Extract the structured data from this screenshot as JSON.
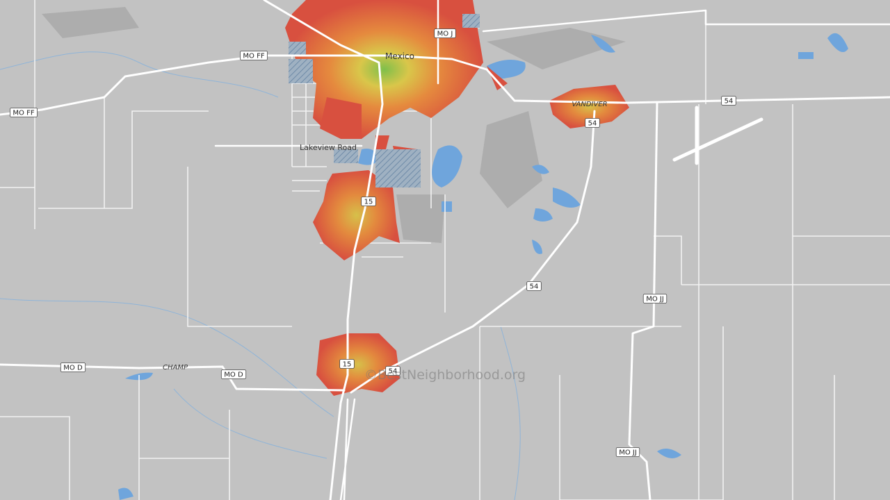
{
  "places": {
    "city": "Mexico",
    "road": "Lakeview Road",
    "vandiver": "VANDIVER",
    "champ": "CHAMP"
  },
  "road_shields": [
    "MO J",
    "MO FF",
    "MO FF",
    "54",
    "54",
    "15",
    "54",
    "MO JJ",
    "15",
    "54",
    "MO D",
    "MO D",
    "MO JJ"
  ],
  "watermark": "©BestNeighborhood.org"
}
